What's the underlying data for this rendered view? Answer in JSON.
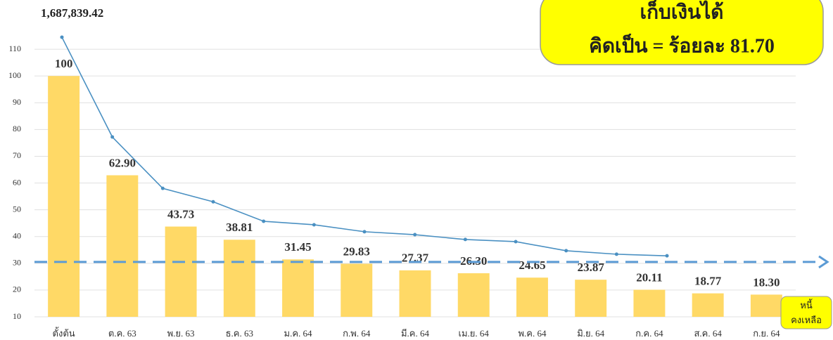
{
  "chart_data": {
    "type": "bar",
    "categories": [
      "ตั้งต้น",
      "ต.ค. 63",
      "พ.ย. 63",
      "ธ.ค. 63",
      "ม.ค. 64",
      "ก.พ. 64",
      "มี.ค. 64",
      "เม.ย. 64",
      "พ.ค. 64",
      "มิ.ย. 64",
      "ก.ค. 64",
      "ส.ค. 64",
      "ก.ย. 64"
    ],
    "values": [
      100,
      62.9,
      43.73,
      38.81,
      31.45,
      29.83,
      27.37,
      26.3,
      24.65,
      23.87,
      20.11,
      18.77,
      18.3
    ],
    "value_labels": [
      "100",
      "62.90",
      "43.73",
      "38.81",
      "31.45",
      "29.83",
      "27.37",
      "26.30",
      "24.65",
      "23.87",
      "20.11",
      "18.77",
      "18.30"
    ],
    "color": "#ffd966",
    "line": {
      "values": [
        114.5,
        77.2,
        58,
        53,
        45.7,
        44.4,
        41.8,
        40.7,
        38.9,
        38.1,
        34.7,
        33.4,
        32.8
      ],
      "color": "#4a90c2"
    },
    "ylim": [
      10,
      120
    ],
    "yticks": [
      10,
      20,
      30,
      40,
      50,
      60,
      70,
      80,
      90,
      100,
      110
    ],
    "grid": true,
    "threshold": 30.5,
    "threshold_color": "#5b9bd5",
    "annotations": {
      "total": "1,687,839.42",
      "collected_box": [
        "เก็บเงินได้",
        "คิดเป็น = ร้อยละ 81.70"
      ],
      "remaining_box": [
        "หนี้",
        "คงเหลือ"
      ]
    }
  }
}
